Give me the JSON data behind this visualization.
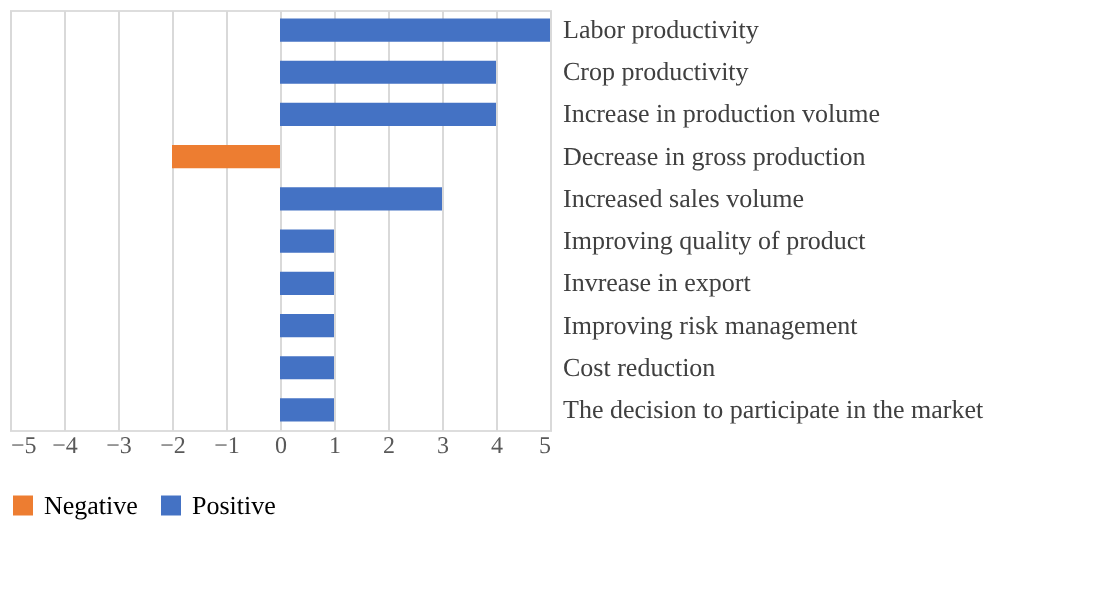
{
  "chart_data": {
    "type": "bar",
    "orientation": "horizontal",
    "categories": [
      "Labor productivity",
      "Crop productivity",
      "Increase in production volume",
      "Decrease in gross production",
      "Increased sales volume",
      "Improving quality of product",
      "Invrease in export",
      "Improving risk management",
      "Cost reduction",
      "The decision to participate in the market"
    ],
    "series": [
      {
        "name": "Negative",
        "color": "#ed7d31",
        "values": [
          null,
          null,
          null,
          -2,
          null,
          null,
          null,
          null,
          null,
          null
        ]
      },
      {
        "name": "Positive",
        "color": "#4472c4",
        "values": [
          5,
          4,
          4,
          null,
          3,
          1,
          1,
          1,
          1,
          1
        ]
      }
    ],
    "xlim": [
      -5,
      5
    ],
    "xticks": [
      -5,
      -4,
      -3,
      -2,
      -1,
      0,
      1,
      2,
      3,
      4,
      5
    ],
    "grid": "x",
    "legend": "bottom"
  }
}
